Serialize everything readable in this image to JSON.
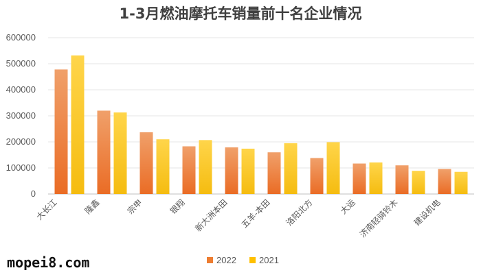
{
  "watermark": "mopei8.com",
  "chart_data": {
    "type": "bar",
    "title": "1-3月燃油摩托车销量前十名企业情况",
    "xlabel": "",
    "ylabel": "",
    "ylim": [
      0,
      600000
    ],
    "yticks": [
      "0",
      "100000",
      "200000",
      "300000",
      "400000",
      "500000",
      "600000"
    ],
    "grid": true,
    "legend_position": "bottom",
    "categories": [
      "大长江",
      "隆鑫",
      "宗申",
      "银翔",
      "新大洲本田",
      "五羊-本田",
      "洛阳北方",
      "大运",
      "济南轻骑铃木",
      "建设机电"
    ],
    "series": [
      {
        "name": "2022",
        "color": "#ED7D31",
        "values": [
          478000,
          320000,
          237000,
          183000,
          179000,
          160000,
          138000,
          117000,
          110000,
          96000
        ]
      },
      {
        "name": "2021",
        "color": "#FFC000",
        "values": [
          532000,
          313000,
          210000,
          207000,
          174000,
          195000,
          199000,
          121000,
          89000,
          85000
        ]
      }
    ]
  }
}
